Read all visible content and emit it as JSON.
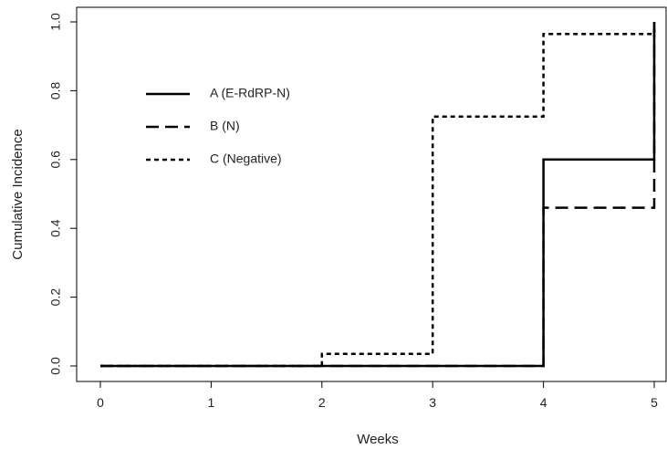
{
  "chart_data": {
    "type": "line",
    "step": true,
    "xlabel": "Weeks",
    "ylabel": "Cumulative Incidence",
    "xlim": [
      0,
      5
    ],
    "ylim": [
      0,
      1
    ],
    "x_ticks": [
      "0",
      "1",
      "2",
      "3",
      "4",
      "5"
    ],
    "y_ticks": [
      "0.0",
      "0.2",
      "0.4",
      "0.6",
      "0.8",
      "1.0"
    ],
    "grid": false,
    "legend_position": "top-left",
    "series": [
      {
        "name": "A (E-RdRP-N)",
        "line_style": "solid",
        "x": [
          0,
          4,
          5
        ],
        "y": [
          0.0,
          0.6,
          1.0
        ]
      },
      {
        "name": "B (N)",
        "line_style": "dashed",
        "x": [
          0,
          4,
          5
        ],
        "y": [
          0.0,
          0.46,
          1.0
        ]
      },
      {
        "name": "C (Negative)",
        "line_style": "dotted",
        "x": [
          0,
          2,
          3,
          4,
          5
        ],
        "y": [
          0.0,
          0.035,
          0.725,
          0.965,
          1.0
        ]
      }
    ]
  }
}
